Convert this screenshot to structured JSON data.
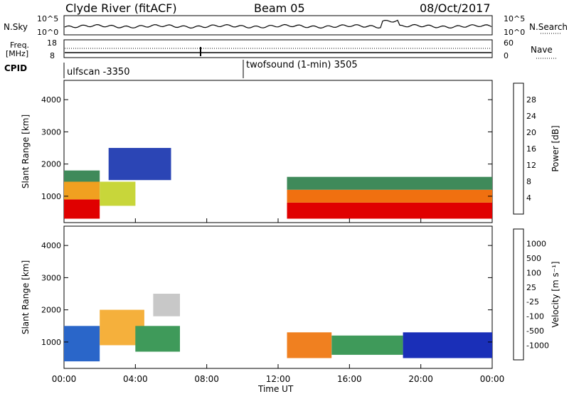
{
  "header": {
    "station": "Clyde River (fitACF)",
    "beam": "Beam 05",
    "date": "08/Oct/2017"
  },
  "strips": {
    "nsky": {
      "label": "N.Sky",
      "left_ticks": [
        "10^5",
        "10^0"
      ],
      "right_ticks": [
        "10^5",
        "10^0"
      ],
      "right_label": "N.Search"
    },
    "freq": {
      "label_lines": [
        "Freq.",
        "[MHz]"
      ],
      "left_ticks": [
        "18",
        "8"
      ],
      "right_ticks": [
        "60",
        "0"
      ],
      "right_label": "Nave"
    },
    "cpid": {
      "label": "CPID",
      "modes": [
        "ulfscan -3350",
        "twofsound (1-min) 3505"
      ]
    }
  },
  "colors": {
    "power": [
      "#0a1bd6",
      "#2b45b5",
      "#3f8a5a",
      "#5fb548",
      "#c8d63a",
      "#f0a020",
      "#f07010",
      "#e83a10",
      "#e00000"
    ],
    "velocity": [
      "#1a2fb8",
      "#2a66c9",
      "#3f9a5a",
      "#7fcf3f",
      "#c8c8c8",
      "#f5b03c",
      "#f08020",
      "#e84010",
      "#e00000"
    ]
  },
  "chart_data": [
    {
      "type": "heatmap",
      "name": "power",
      "ylabel": "Slant Range [km]",
      "xlabel": "Time UT",
      "x_ticks": [
        "00:00",
        "04:00",
        "08:00",
        "12:00",
        "16:00",
        "20:00",
        "00:00"
      ],
      "x_range_hours": [
        0,
        24
      ],
      "y_ticks": [
        1000,
        2000,
        3000,
        4000
      ],
      "y_range_km": [
        180,
        4600
      ],
      "colorbar": {
        "label": "Power [dB]",
        "ticks": [
          "4",
          "8",
          "12",
          "16",
          "20",
          "24",
          "28"
        ]
      },
      "bands": [
        {
          "t0": 0.0,
          "t1": 2.0,
          "r0": 300,
          "r1": 900,
          "level": 8
        },
        {
          "t0": 0.0,
          "t1": 2.0,
          "r0": 900,
          "r1": 1450,
          "level": 5
        },
        {
          "t0": 0.0,
          "t1": 2.0,
          "r0": 1450,
          "r1": 1800,
          "level": 2
        },
        {
          "t0": 2.0,
          "t1": 4.0,
          "r0": 700,
          "r1": 1450,
          "level": 4
        },
        {
          "t0": 2.5,
          "t1": 6.0,
          "r0": 1500,
          "r1": 2500,
          "level": 1
        },
        {
          "t0": 12.5,
          "t1": 24.0,
          "r0": 300,
          "r1": 800,
          "level": 8
        },
        {
          "t0": 12.5,
          "t1": 24.0,
          "r0": 800,
          "r1": 1200,
          "level": 6
        },
        {
          "t0": 12.5,
          "t1": 24.0,
          "r0": 1200,
          "r1": 1600,
          "level": 2
        }
      ]
    },
    {
      "type": "heatmap",
      "name": "velocity",
      "ylabel": "Slant Range [km]",
      "xlabel": "Time UT",
      "x_ticks": [
        "00:00",
        "04:00",
        "08:00",
        "12:00",
        "16:00",
        "20:00",
        "00:00"
      ],
      "x_range_hours": [
        0,
        24
      ],
      "y_ticks": [
        1000,
        2000,
        3000,
        4000
      ],
      "y_range_km": [
        180,
        4600
      ],
      "colorbar": {
        "label": "Velocity [m s⁻¹]",
        "ticks": [
          "1000",
          "500",
          "100",
          "25",
          "-25",
          "-100",
          "-500",
          "-1000"
        ]
      },
      "bands": [
        {
          "t0": 0.0,
          "t1": 2.0,
          "r0": 400,
          "r1": 1500,
          "level": 1
        },
        {
          "t0": 2.0,
          "t1": 4.5,
          "r0": 900,
          "r1": 2000,
          "level": 5
        },
        {
          "t0": 4.0,
          "t1": 6.5,
          "r0": 700,
          "r1": 1500,
          "level": 2
        },
        {
          "t0": 5.0,
          "t1": 6.5,
          "r0": 1800,
          "r1": 2500,
          "level": 4
        },
        {
          "t0": 12.5,
          "t1": 15.0,
          "r0": 500,
          "r1": 1300,
          "level": 6
        },
        {
          "t0": 15.0,
          "t1": 19.0,
          "r0": 600,
          "r1": 1200,
          "level": 2
        },
        {
          "t0": 19.0,
          "t1": 24.0,
          "r0": 500,
          "r1": 1300,
          "level": 0
        }
      ]
    }
  ]
}
